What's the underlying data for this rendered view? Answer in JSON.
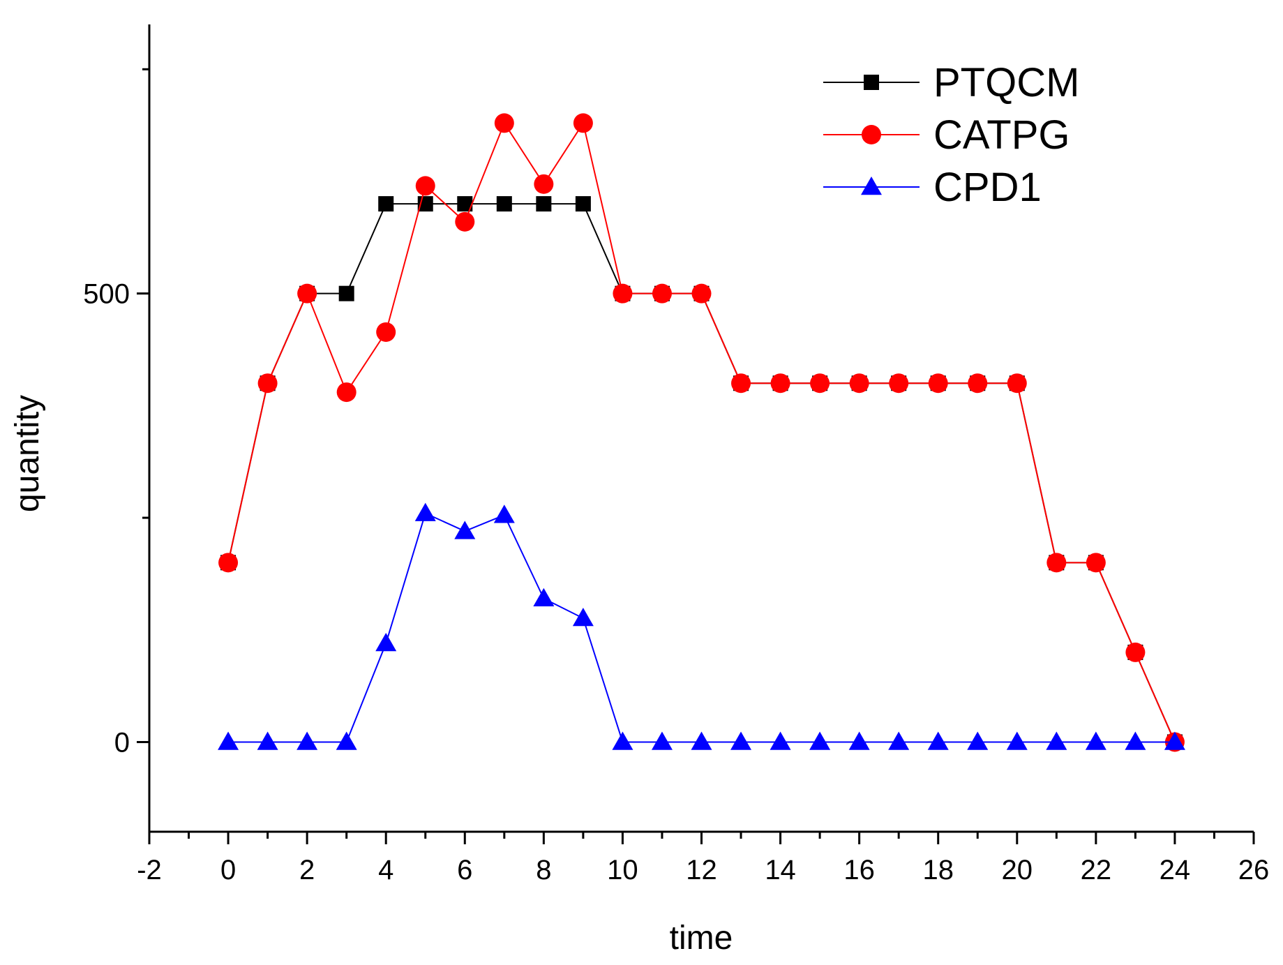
{
  "chart_data": {
    "type": "line",
    "title": "",
    "xlabel": "time",
    "ylabel": "quantity",
    "xlim": [
      -2,
      26
    ],
    "ylim": [
      -100,
      800
    ],
    "x_ticks": [
      -2,
      0,
      2,
      4,
      6,
      8,
      10,
      12,
      14,
      16,
      18,
      20,
      22,
      24,
      26
    ],
    "x_minor_ticks": [
      -1,
      1,
      3,
      5,
      7,
      9,
      11,
      13,
      15,
      17,
      19,
      21,
      23,
      25
    ],
    "y_ticks": [
      0,
      500
    ],
    "y_minor_ticks": [
      250,
      750
    ],
    "grid": false,
    "legend_position": "top-right",
    "x": [
      0,
      1,
      2,
      3,
      4,
      5,
      6,
      7,
      8,
      9,
      10,
      11,
      12,
      13,
      14,
      15,
      16,
      17,
      18,
      19,
      20,
      21,
      22,
      23,
      24
    ],
    "series": [
      {
        "name": "PTQCM",
        "color": "#000000",
        "marker": "square",
        "values": [
          200,
          400,
          500,
          500,
          600,
          600,
          600,
          600,
          600,
          600,
          500,
          500,
          500,
          400,
          400,
          400,
          400,
          400,
          400,
          400,
          400,
          200,
          200,
          100,
          0
        ]
      },
      {
        "name": "CATPG",
        "color": "#ff0000",
        "marker": "circle",
        "values": [
          200,
          400,
          500,
          390,
          457,
          620,
          580,
          690,
          622,
          690,
          500,
          500,
          500,
          400,
          400,
          400,
          400,
          400,
          400,
          400,
          400,
          200,
          200,
          100,
          0
        ]
      },
      {
        "name": "CPD1",
        "color": "#0000ff",
        "marker": "triangle",
        "values": [
          0,
          0,
          0,
          0,
          110,
          255,
          235,
          253,
          160,
          138,
          0,
          0,
          0,
          0,
          0,
          0,
          0,
          0,
          0,
          0,
          0,
          0,
          0,
          0,
          0
        ]
      }
    ]
  }
}
